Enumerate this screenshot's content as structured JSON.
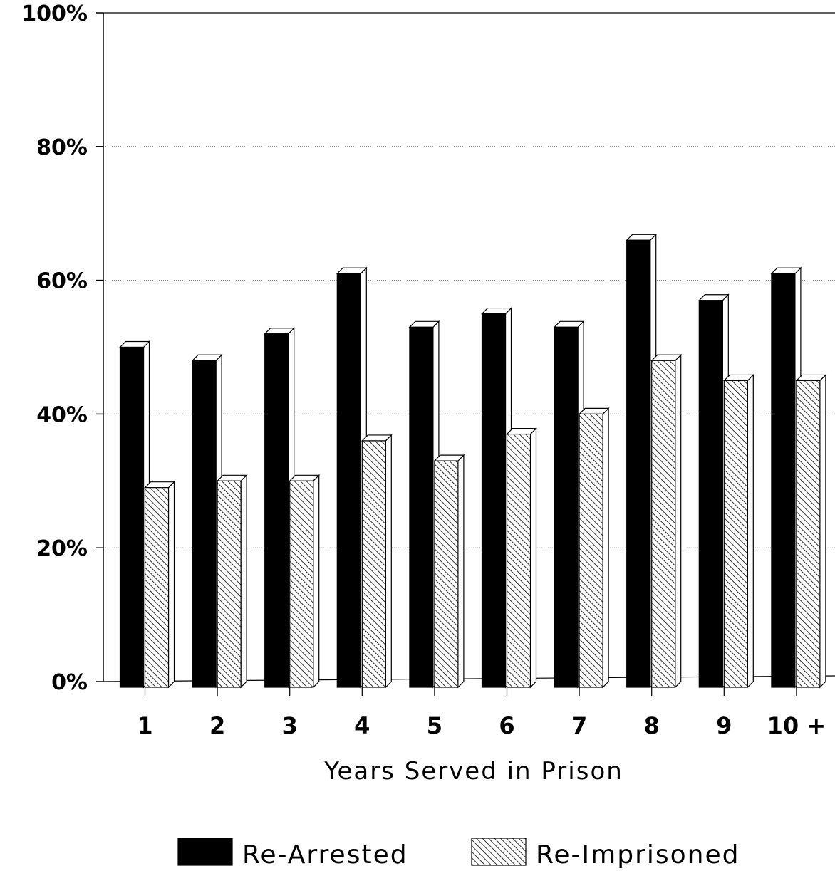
{
  "chart_data": {
    "type": "bar",
    "title": "",
    "xlabel": "Years Served in Prison",
    "ylabel": "",
    "categories": [
      "1",
      "2",
      "3",
      "4",
      "5",
      "6",
      "7",
      "8",
      "9",
      "10 +"
    ],
    "series": [
      {
        "name": "Re-Arrested",
        "values": [
          50,
          48,
          52,
          61,
          53,
          55,
          53,
          66,
          57,
          61
        ],
        "color": "#000000",
        "pattern": "solid"
      },
      {
        "name": "Re-Imprisoned",
        "values": [
          29,
          30,
          30,
          36,
          33,
          37,
          40,
          48,
          45,
          45
        ],
        "color": "#ffffff",
        "pattern": "diagonal-hatch"
      }
    ],
    "ylim": [
      0,
      100
    ],
    "yticks": [
      0,
      20,
      40,
      60,
      80,
      100
    ],
    "ytick_labels": [
      "0%",
      "20%",
      "40%",
      "60%",
      "80%",
      "100%"
    ],
    "grid": true,
    "legend_position": "bottom",
    "style": "3d-bars"
  }
}
